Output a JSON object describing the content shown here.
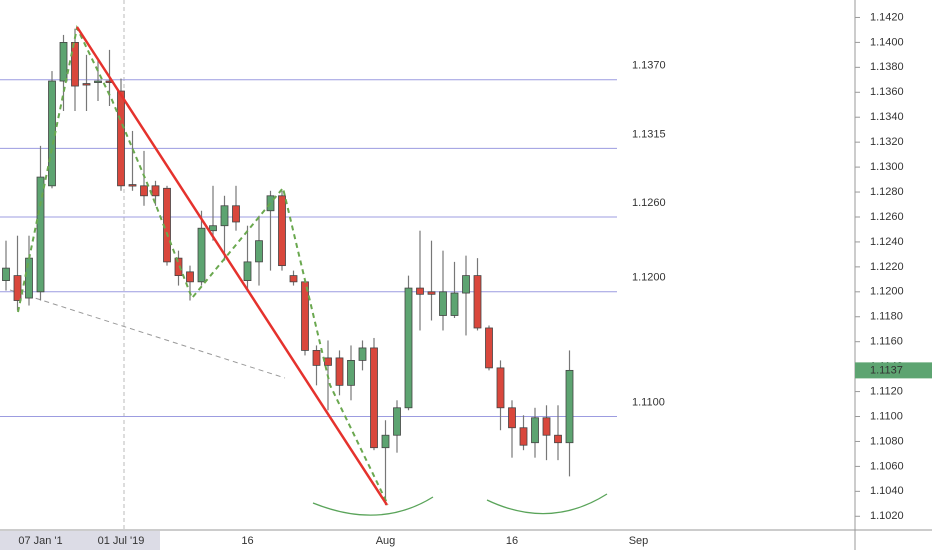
{
  "chart_data": {
    "type": "candlestick",
    "categories": [
      null,
      null,
      null,
      "07 Jan '1",
      null,
      null,
      null,
      null,
      null,
      null,
      "01 Jul '19",
      null,
      null,
      null,
      null,
      null,
      null,
      null,
      null,
      null,
      null,
      "16",
      null,
      null,
      null,
      null,
      null,
      null,
      null,
      null,
      null,
      null,
      null,
      "Aug",
      null,
      null,
      null,
      null,
      null,
      null,
      null,
      null,
      null,
      null,
      "16",
      null,
      null,
      null,
      null,
      null,
      null,
      null,
      null,
      null,
      null,
      "Sep",
      null
    ],
    "open": [
      1.1209,
      1.1213,
      1.1195,
      1.12,
      1.1285,
      1.1369,
      1.14,
      1.1367,
      1.1368,
      1.1369,
      1.1361,
      1.1286,
      1.1285,
      1.1285,
      1.1283,
      1.1227,
      1.1216,
      1.1208,
      1.1249,
      1.1253,
      1.1269,
      1.1209,
      1.1224,
      1.1265,
      1.1277,
      1.1213,
      1.1208,
      1.1153,
      1.1147,
      1.1147,
      1.1125,
      1.1145,
      1.1155,
      1.1075,
      1.1085,
      1.1107,
      1.1203,
      1.12,
      1.1181,
      1.1181,
      1.1199,
      1.1213,
      1.1171,
      1.1139,
      1.1107,
      1.1091,
      1.1079,
      1.1099,
      1.1085,
      1.1079,
      null,
      null,
      null,
      null,
      null,
      null,
      null
    ],
    "high": [
      1.1241,
      1.1245,
      1.1245,
      1.1317,
      1.1377,
      1.1406,
      1.1411,
      1.139,
      1.1386,
      1.1394,
      1.1371,
      1.1329,
      1.1313,
      1.1289,
      1.1285,
      1.1233,
      1.1221,
      1.1265,
      1.1285,
      1.1277,
      1.1285,
      1.1253,
      1.1261,
      1.1281,
      1.1281,
      1.1217,
      1.1209,
      1.1157,
      1.1161,
      1.1153,
      1.1157,
      1.1161,
      1.1163,
      1.1097,
      1.1113,
      1.1213,
      1.1249,
      1.1241,
      1.1233,
      1.1224,
      1.1229,
      1.1227,
      1.1173,
      1.1145,
      1.1113,
      1.1101,
      1.1107,
      1.1109,
      1.1109,
      1.1153,
      null,
      null,
      null,
      null,
      null,
      null,
      null
    ],
    "low": [
      1.1201,
      1.1185,
      1.1189,
      1.1193,
      1.1283,
      1.1345,
      1.1345,
      1.1345,
      1.1353,
      1.1349,
      1.1281,
      1.1281,
      1.1269,
      1.1269,
      1.1221,
      1.1205,
      1.1193,
      1.1205,
      1.1241,
      1.1225,
      1.1249,
      1.1201,
      1.1205,
      1.1217,
      1.1217,
      1.1205,
      1.1149,
      1.1125,
      1.1105,
      1.1117,
      1.1113,
      1.1137,
      1.1073,
      1.1029,
      1.1071,
      1.1105,
      1.1169,
      1.1177,
      1.1169,
      1.1179,
      1.1165,
      1.1169,
      1.1137,
      1.1089,
      1.1067,
      1.1073,
      1.1067,
      1.1065,
      1.1065,
      1.1052,
      null,
      null,
      null,
      null,
      null,
      null,
      null
    ],
    "close": [
      1.1219,
      1.1193,
      1.1227,
      1.1292,
      1.1369,
      1.14,
      1.1365,
      1.1366,
      1.1369,
      1.1368,
      1.1285,
      1.1285,
      1.1277,
      1.1277,
      1.1224,
      1.1213,
      1.1208,
      1.1251,
      1.1253,
      1.1269,
      1.1256,
      1.1224,
      1.1241,
      1.1277,
      1.1221,
      1.1208,
      1.1153,
      1.1141,
      1.1141,
      1.1125,
      1.1145,
      1.1155,
      1.1075,
      1.1085,
      1.1107,
      1.1203,
      1.1198,
      1.1198,
      1.12,
      1.1199,
      1.1213,
      1.1171,
      1.1139,
      1.1107,
      1.1091,
      1.1077,
      1.1099,
      1.1085,
      1.1079,
      1.1137,
      null,
      null,
      null,
      null,
      null,
      null,
      null
    ],
    "up_color": "#5da471",
    "down_color": "#d9473c",
    "ylim": [
      1.1009,
      1.1434
    ],
    "yticks": [
      {
        "value": 1.102,
        "label": "1.1020"
      },
      {
        "value": 1.104,
        "label": "1.1040"
      },
      {
        "value": 1.106,
        "label": "1.1060"
      },
      {
        "value": 1.108,
        "label": "1.1080"
      },
      {
        "value": 1.11,
        "label": "1.1100"
      },
      {
        "value": 1.112,
        "label": "1.1120"
      },
      {
        "value": 1.114,
        "label": "1.1140"
      },
      {
        "value": 1.116,
        "label": "1.1160"
      },
      {
        "value": 1.118,
        "label": "1.1180"
      },
      {
        "value": 1.12,
        "label": "1.1200"
      },
      {
        "value": 1.122,
        "label": "1.1220"
      },
      {
        "value": 1.124,
        "label": "1.1240"
      },
      {
        "value": 1.126,
        "label": "1.1260"
      },
      {
        "value": 1.128,
        "label": "1.1280"
      },
      {
        "value": 1.13,
        "label": "1.1300"
      },
      {
        "value": 1.132,
        "label": "1.1320"
      },
      {
        "value": 1.134,
        "label": "1.1340"
      },
      {
        "value": 1.136,
        "label": "1.1360"
      },
      {
        "value": 1.138,
        "label": "1.1380"
      },
      {
        "value": 1.14,
        "label": "1.1400"
      },
      {
        "value": 1.142,
        "label": "1.1420"
      }
    ],
    "levels": [
      {
        "value": 1.137,
        "label": "1.1370"
      },
      {
        "value": 1.1315,
        "label": "1.1315"
      },
      {
        "value": 1.126,
        "label": "1.1260"
      },
      {
        "value": 1.12,
        "label": "1.1200"
      },
      {
        "value": 1.11,
        "label": "1.1100"
      }
    ],
    "level_color": "#9c9ce0",
    "last_price": {
      "value": 1.1137,
      "label": "1.1137"
    }
  }
}
